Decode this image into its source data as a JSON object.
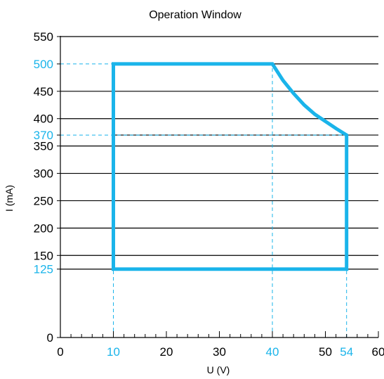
{
  "chart_data": {
    "type": "area",
    "title": "Operation Window",
    "xlabel": "U (V)",
    "ylabel": "I (mA)",
    "xlim": [
      0,
      60
    ],
    "ylim": [
      0,
      550
    ],
    "x_ticks": [
      {
        "value": 0,
        "label": "0",
        "highlight": false
      },
      {
        "value": 10,
        "label": "10",
        "highlight": true
      },
      {
        "value": 20,
        "label": "20",
        "highlight": false
      },
      {
        "value": 30,
        "label": "30",
        "highlight": false
      },
      {
        "value": 40,
        "label": "40",
        "highlight": true
      },
      {
        "value": 50,
        "label": "50",
        "highlight": false
      },
      {
        "value": 54,
        "label": "54",
        "highlight": true
      },
      {
        "value": 60,
        "label": "60",
        "highlight": false
      }
    ],
    "y_ticks": [
      {
        "value": 0,
        "label": "0",
        "highlight": false
      },
      {
        "value": 125,
        "label": "125",
        "highlight": true
      },
      {
        "value": 150,
        "label": "150",
        "highlight": false
      },
      {
        "value": 200,
        "label": "200",
        "highlight": false
      },
      {
        "value": 250,
        "label": "250",
        "highlight": false
      },
      {
        "value": 300,
        "label": "300",
        "highlight": false
      },
      {
        "value": 350,
        "label": "350",
        "highlight": false
      },
      {
        "value": 370,
        "label": "370",
        "highlight": true
      },
      {
        "value": 400,
        "label": "400",
        "highlight": false
      },
      {
        "value": 450,
        "label": "450",
        "highlight": false
      },
      {
        "value": 500,
        "label": "500",
        "highlight": true
      },
      {
        "value": 550,
        "label": "550",
        "highlight": false
      }
    ],
    "gridlines_y": [
      125,
      150,
      200,
      250,
      300,
      350,
      370,
      400,
      450,
      500,
      550
    ],
    "reference_lines": [
      {
        "orientation": "horizontal",
        "value": 500,
        "from_x": 0,
        "to_x": 10
      },
      {
        "orientation": "horizontal",
        "value": 370,
        "from_x": 0,
        "to_x": 54
      },
      {
        "orientation": "vertical",
        "value": 10,
        "from_y": 0,
        "to_y": 125
      },
      {
        "orientation": "vertical",
        "value": 40,
        "from_y": 0,
        "to_y": 500
      },
      {
        "orientation": "vertical",
        "value": 54,
        "from_y": 0,
        "to_y": 125
      }
    ],
    "series": [
      {
        "points": [
          [
            10,
            125
          ],
          [
            10,
            500
          ],
          [
            40,
            500
          ],
          [
            42,
            470
          ],
          [
            44,
            446
          ],
          [
            46,
            425
          ],
          [
            48,
            408
          ],
          [
            50,
            395
          ],
          [
            52,
            382
          ],
          [
            54,
            370
          ],
          [
            54,
            125
          ],
          [
            10,
            125
          ]
        ]
      }
    ],
    "grid": "horizontal",
    "colors": {
      "accent": "#1ab4ea",
      "axis": "#000000",
      "grid": "#000000"
    }
  }
}
